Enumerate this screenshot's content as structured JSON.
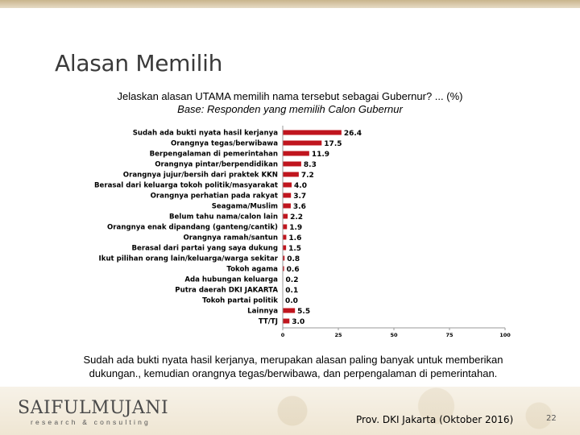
{
  "slide": {
    "title": "Alasan Memilih",
    "question": "Jelaskan alasan UTAMA memilih nama tersebut sebagai Gubernur? ... (%)",
    "base": "Base: Responden yang memilih Calon Gubernur",
    "summary_line1": "Sudah ada bukti nyata hasil kerjanya, merupakan alasan paling banyak untuk memberikan",
    "summary_line2": "dukungan., kemudian orangnya tegas/berwibawa, dan perpengalaman di pemerintahan.",
    "source": "Prov. DKI Jakarta (Oktober 2016)",
    "page_number": "22"
  },
  "logo": {
    "name": "SAIFULMUJANI",
    "tagline": "research & consulting"
  },
  "colors": {
    "bar": "#c0151e",
    "axis": "#999999"
  },
  "chart_data": {
    "type": "bar",
    "orientation": "horizontal",
    "categories": [
      "Sudah ada bukti nyata hasil kerjanya",
      "Orangnya tegas/berwibawa",
      "Berpengalaman di pemerintahan",
      "Orangnya pintar/berpendidikan",
      "Orangnya jujur/bersih dari praktek KKN",
      "Berasal dari keluarga tokoh politik/masyarakat",
      "Orangnya perhatian pada rakyat",
      "Seagama/Muslim",
      "Belum tahu nama/calon lain",
      "Orangnya enak dipandang (ganteng/cantik)",
      "Orangnya ramah/santun",
      "Berasal dari partai yang saya dukung",
      "Ikut pilihan orang lain/keluarga/warga sekitar",
      "Tokoh agama",
      "Ada hubungan keluarga",
      "Putra daerah DKI JAKARTA",
      "Tokoh partai politik",
      "Lainnya",
      "TT/TJ"
    ],
    "values": [
      26.4,
      17.5,
      11.9,
      8.3,
      7.2,
      4.0,
      3.7,
      3.6,
      2.2,
      1.9,
      1.6,
      1.5,
      0.8,
      0.6,
      0.2,
      0.1,
      0.0,
      5.5,
      3.0
    ],
    "value_labels": [
      "26.4",
      "17.5",
      "11.9",
      "8.3",
      "7.2",
      "4.0",
      "3.7",
      "3.6",
      "2.2",
      "1.9",
      "1.6",
      "1.5",
      "0.8",
      "0.6",
      "0.2",
      "0.1",
      "0.0",
      "5.5",
      "3.0"
    ],
    "xlim": [
      0,
      100
    ],
    "xticks": [
      0,
      25,
      50,
      75,
      100
    ],
    "grid": false,
    "legend": "none"
  }
}
